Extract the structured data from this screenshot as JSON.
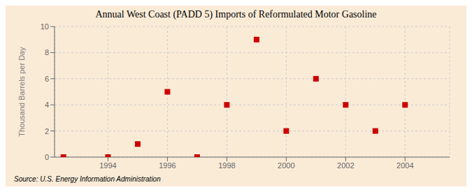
{
  "chart_data": {
    "type": "scatter",
    "title": "Annual West Coast (PADD 5) Imports of Reformulated Motor Gasoline",
    "ylabel": "Thousand Barrels per Day",
    "annotations": [
      "Source: U.S. Energy Information Administration"
    ],
    "x": [
      1992.5,
      1994,
      1995,
      1996,
      1997,
      1998,
      1999,
      2000,
      2001,
      2002,
      2003,
      2004
    ],
    "values": [
      0,
      0,
      1,
      5,
      0,
      4,
      9,
      2,
      6,
      4,
      2,
      4
    ],
    "color": "#cc0000",
    "marker": "square",
    "xlim": [
      1992.2,
      2005.5
    ],
    "ylim": [
      0,
      10
    ],
    "xticks": [
      1994,
      1996,
      1998,
      2000,
      2002,
      2004
    ],
    "yticks": [
      0,
      2,
      4,
      6,
      8,
      10
    ],
    "grid": true
  }
}
